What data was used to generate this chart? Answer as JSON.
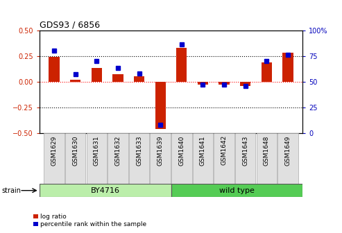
{
  "title": "GDS93 / 6856",
  "samples": [
    "GSM1629",
    "GSM1630",
    "GSM1631",
    "GSM1632",
    "GSM1633",
    "GSM1639",
    "GSM1640",
    "GSM1641",
    "GSM1642",
    "GSM1643",
    "GSM1648",
    "GSM1649"
  ],
  "log_ratio": [
    0.24,
    0.02,
    0.13,
    0.07,
    0.05,
    -0.46,
    0.33,
    -0.03,
    -0.03,
    -0.04,
    0.19,
    0.28
  ],
  "percentile_rank": [
    80,
    57,
    70,
    63,
    58,
    8,
    86,
    47,
    47,
    46,
    70,
    76
  ],
  "bar_color_red": "#cc2200",
  "bar_color_blue": "#0000cc",
  "ylim_left": [
    -0.5,
    0.5
  ],
  "ylim_right": [
    0,
    100
  ],
  "yticks_left": [
    -0.5,
    -0.25,
    0.0,
    0.25,
    0.5
  ],
  "yticks_right": [
    0,
    25,
    50,
    75,
    100
  ],
  "strain_groups": [
    {
      "label": "BY4716",
      "start": 0,
      "end": 6,
      "color": "#bbeeaa"
    },
    {
      "label": "wild type",
      "start": 6,
      "end": 12,
      "color": "#55cc55"
    }
  ],
  "strain_label": "strain",
  "legend_items": [
    {
      "label": "log ratio",
      "color": "#cc2200"
    },
    {
      "label": "percentile rank within the sample",
      "color": "#0000cc"
    }
  ],
  "bg_color": "#ffffff",
  "tick_label_color_left": "#cc2200",
  "tick_label_color_right": "#0000bb",
  "bar_width": 0.5
}
